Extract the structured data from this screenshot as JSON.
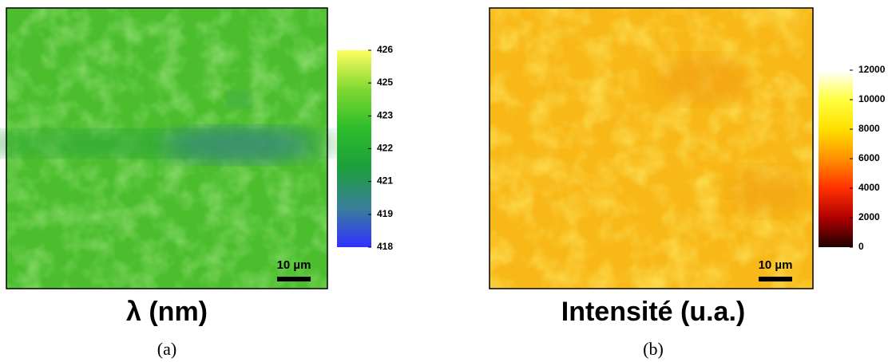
{
  "chart_data": [
    {
      "type": "map",
      "title": "λ (nm)",
      "caption": "(a)",
      "scale_bar": "10 µm",
      "colorbar": {
        "lim": [
          418,
          426
        ],
        "ticks": [
          418,
          {
            "value": 419.33,
            "label": "419"
          },
          {
            "value": 420.67,
            "label": "421"
          },
          422,
          {
            "value": 423.33,
            "label": "423"
          },
          {
            "value": 424.67,
            "label": "425"
          },
          426
        ],
        "colors": [
          "#3030ff",
          "#3a7f99",
          "#1c9e3c",
          "#2cbc2c",
          "#7ed830",
          "#ffff60"
        ]
      }
    },
    {
      "type": "map",
      "title": "Intensité (u.a.)",
      "caption": "(b)",
      "scale_bar": "10 µm",
      "colorbar": {
        "lim": [
          0,
          12000
        ],
        "ticks": [
          0,
          2000,
          4000,
          6000,
          8000,
          10000,
          12000
        ],
        "colors": [
          "#200000",
          "#b00000",
          "#ff3000",
          "#ff9000",
          "#ffe000",
          "#ffff40",
          "#ffffff"
        ]
      }
    }
  ]
}
